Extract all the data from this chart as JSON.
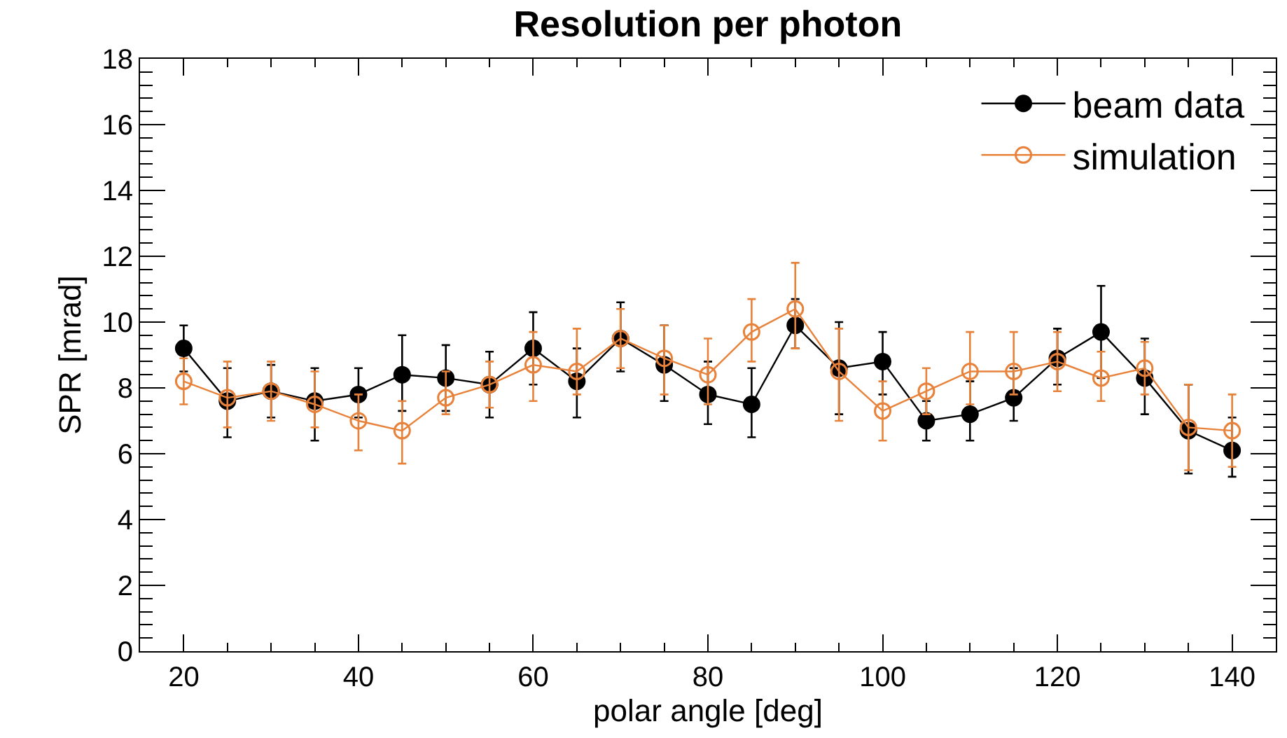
{
  "chart_data": {
    "type": "line",
    "title": "Resolution per photon",
    "xlabel": "polar angle [deg]",
    "ylabel": "SPR [mrad]",
    "x": [
      20,
      25,
      30,
      35,
      40,
      45,
      50,
      55,
      60,
      65,
      70,
      75,
      80,
      85,
      90,
      95,
      100,
      105,
      110,
      115,
      120,
      125,
      130,
      135,
      140
    ],
    "series": [
      {
        "name": "beam data",
        "color": "#000000",
        "values": [
          9.2,
          7.6,
          7.9,
          7.6,
          7.8,
          8.4,
          8.3,
          8.1,
          9.2,
          8.2,
          9.5,
          8.7,
          7.8,
          7.5,
          9.9,
          8.6,
          8.8,
          7.0,
          7.2,
          7.7,
          8.9,
          9.7,
          8.3,
          6.7,
          6.1
        ],
        "errors": [
          [
            8.5,
            9.9
          ],
          [
            6.5,
            8.6
          ],
          [
            7.1,
            8.7
          ],
          [
            6.4,
            8.6
          ],
          [
            7.1,
            8.6
          ],
          [
            7.3,
            9.6
          ],
          [
            7.3,
            9.3
          ],
          [
            7.1,
            9.1
          ],
          [
            8.1,
            10.3
          ],
          [
            7.1,
            9.2
          ],
          [
            8.5,
            10.6
          ],
          [
            7.6,
            9.9
          ],
          [
            6.9,
            8.8
          ],
          [
            6.5,
            8.6
          ],
          [
            9.2,
            10.7
          ],
          [
            7.2,
            10.0
          ],
          [
            7.8,
            9.7
          ],
          [
            6.4,
            7.6
          ],
          [
            6.4,
            8.2
          ],
          [
            7.0,
            8.6
          ],
          [
            8.1,
            9.8
          ],
          [
            8.3,
            11.1
          ],
          [
            7.2,
            9.5
          ],
          [
            5.4,
            8.1
          ],
          [
            5.3,
            7.1
          ]
        ]
      },
      {
        "name": "simulation",
        "color": "#e8823a",
        "values": [
          8.2,
          7.7,
          7.9,
          7.5,
          7.0,
          6.7,
          7.7,
          8.1,
          8.7,
          8.5,
          9.5,
          8.9,
          8.4,
          9.7,
          10.4,
          8.5,
          7.3,
          7.9,
          8.5,
          8.5,
          8.8,
          8.3,
          8.6,
          6.8,
          6.7
        ],
        "errors": [
          [
            7.5,
            8.9
          ],
          [
            6.8,
            8.8
          ],
          [
            7.0,
            8.8
          ],
          [
            6.8,
            8.5
          ],
          [
            6.1,
            7.8
          ],
          [
            5.7,
            7.6
          ],
          [
            7.2,
            8.5
          ],
          [
            7.4,
            8.8
          ],
          [
            7.6,
            9.7
          ],
          [
            7.8,
            9.8
          ],
          [
            8.6,
            10.4
          ],
          [
            7.8,
            9.9
          ],
          [
            7.5,
            9.5
          ],
          [
            8.8,
            10.7
          ],
          [
            9.2,
            11.8
          ],
          [
            7.0,
            9.8
          ],
          [
            6.4,
            8.2
          ],
          [
            7.2,
            8.6
          ],
          [
            7.5,
            9.7
          ],
          [
            7.8,
            9.7
          ],
          [
            7.9,
            9.7
          ],
          [
            7.6,
            9.1
          ],
          [
            7.8,
            9.4
          ],
          [
            5.5,
            8.1
          ],
          [
            5.6,
            7.8
          ]
        ]
      }
    ],
    "xlim": [
      15,
      145
    ],
    "xticks": [
      20,
      40,
      60,
      80,
      100,
      120,
      140
    ],
    "ylim": [
      0,
      18
    ],
    "yticks": [
      0,
      2,
      4,
      6,
      8,
      10,
      12,
      14,
      16,
      18
    ],
    "grid": false,
    "legend": "top right",
    "marker": "circle",
    "line_style": "solid"
  }
}
